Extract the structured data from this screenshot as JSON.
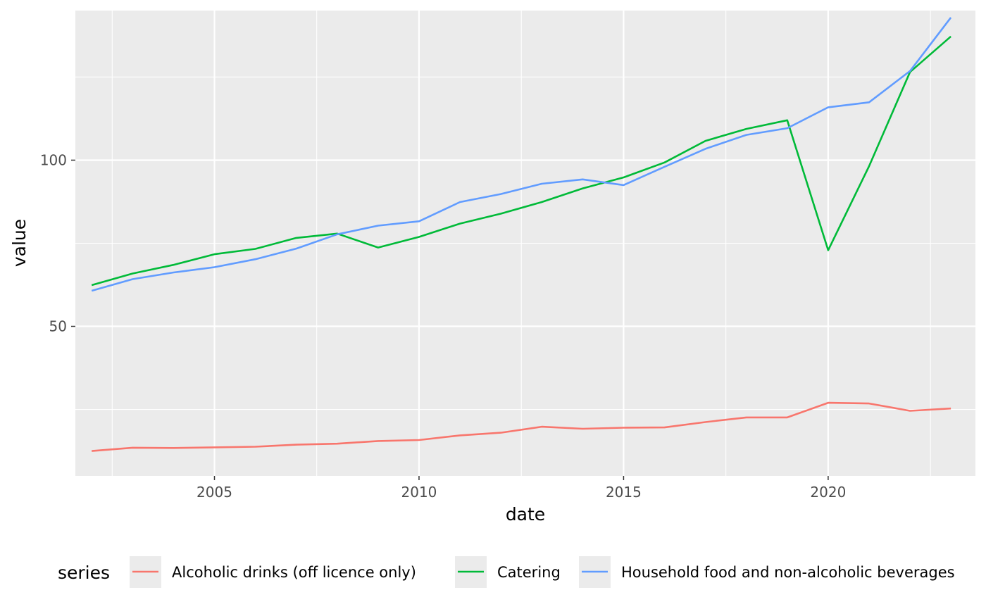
{
  "chart_data": {
    "type": "line",
    "xlabel": "date",
    "ylabel": "value",
    "xlim": [
      2001.6,
      2023.6
    ],
    "ylim": [
      5,
      145
    ],
    "x_major_ticks": [
      2005,
      2010,
      2015,
      2020
    ],
    "x_minor_ticks": [
      2002.5,
      2007.5,
      2012.5,
      2017.5,
      2022.5
    ],
    "y_major_ticks": [
      50,
      100
    ],
    "y_minor_ticks": [
      25,
      75,
      125
    ],
    "x_tick_labels": [
      "2005",
      "2010",
      "2015",
      "2020"
    ],
    "y_tick_labels": [
      "50",
      "100"
    ],
    "grid": true,
    "legend": {
      "title": "series",
      "position": "bottom"
    },
    "x": [
      2002,
      2003,
      2004,
      2005,
      2006,
      2007,
      2008,
      2009,
      2010,
      2011,
      2012,
      2013,
      2014,
      2015,
      2016,
      2017,
      2018,
      2019,
      2020,
      2021,
      2022,
      2023
    ],
    "series": [
      {
        "name": "Alcoholic drinks (off licence only)",
        "color": "#F8766D",
        "values": [
          12.5,
          13.5,
          13.4,
          13.6,
          13.8,
          14.4,
          14.7,
          15.5,
          15.8,
          17.2,
          18.0,
          19.8,
          19.2,
          19.5,
          19.6,
          21.2,
          22.6,
          22.6,
          27.0,
          26.8,
          24.6,
          25.3
        ]
      },
      {
        "name": "Catering",
        "color": "#00BA38",
        "values": [
          62.4,
          65.9,
          68.5,
          71.7,
          73.3,
          76.6,
          77.9,
          73.7,
          76.9,
          80.9,
          83.9,
          87.4,
          91.5,
          94.8,
          99.3,
          105.8,
          109.4,
          112.0,
          72.9,
          98.2,
          126.5,
          137.2
        ]
      },
      {
        "name": "Household food and non-alcoholic beverages",
        "color": "#619CFF",
        "values": [
          60.7,
          64.2,
          66.2,
          67.8,
          70.2,
          73.4,
          77.7,
          80.3,
          81.6,
          87.4,
          89.8,
          92.9,
          94.2,
          92.5,
          98.0,
          103.4,
          107.6,
          109.6,
          115.9,
          117.4,
          126.8,
          142.9
        ]
      }
    ]
  }
}
